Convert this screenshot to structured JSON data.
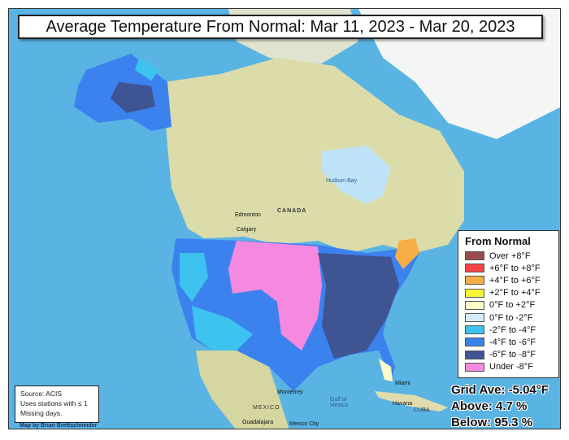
{
  "title": "Average Temperature From Normal: Mar 11, 2023 - Mar 20, 2023",
  "legend": {
    "title": "From Normal",
    "items": [
      {
        "label": "Over +8°F",
        "color": "#9b4a4f"
      },
      {
        "label": "+6°F to +8°F",
        "color": "#f44447"
      },
      {
        "label": "+4°F to +6°F",
        "color": "#f9ad45"
      },
      {
        "label": "+2°F to +4°F",
        "color": "#f8f537"
      },
      {
        "label": "0°F to +2°F",
        "color": "#fdfbc9"
      },
      {
        "label": "0°F to -2°F",
        "color": "#d4ecfb"
      },
      {
        "label": "-2°F to -4°F",
        "color": "#3ec2ef"
      },
      {
        "label": "-4°F to -6°F",
        "color": "#3b82ee"
      },
      {
        "label": "-6°F to -8°F",
        "color": "#3f5493"
      },
      {
        "label": "Under -8°F",
        "color": "#f589e0"
      }
    ]
  },
  "stats": {
    "grid_ave": "Grid Ave: -5.04°F",
    "above": "Above: 4.7 %",
    "below": "Below: 95.3 %"
  },
  "source": {
    "line1": "Source: ACIS",
    "line2": "Uses stations with ≤ 1",
    "line3": "Missing days."
  },
  "credit": "Map by Brian Brettschneider",
  "places": {
    "canada": "CANADA",
    "hudson_bay": "Hudson Bay",
    "edmonton": "Edmonton",
    "calgary": "Calgary",
    "mexico": "MEXICO",
    "gulf": "Gulf of Mexico",
    "monterrey": "Monterrey",
    "guadalajara": "Guadalajara",
    "mexico_city": "Mexico City",
    "miami": "Miami",
    "havana": "Havana",
    "cuba": "CUBA"
  }
}
